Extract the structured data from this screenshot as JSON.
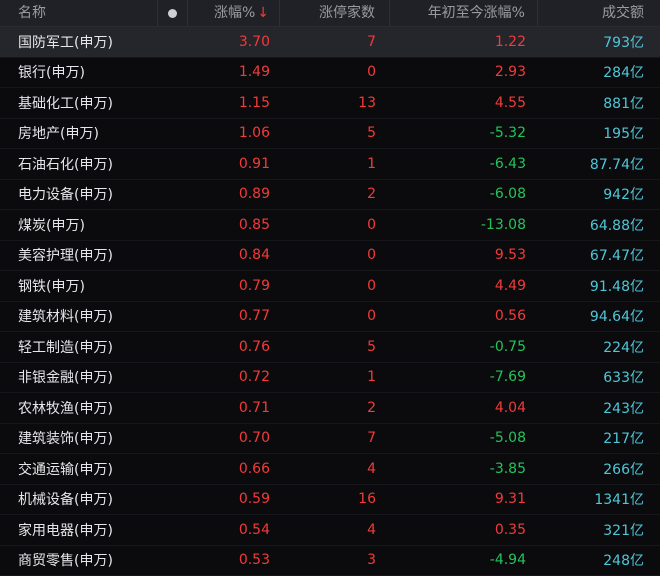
{
  "header": {
    "name": "名称",
    "change": "涨幅%",
    "sort_arrow": "↓",
    "limit_up": "涨停家数",
    "ytd": "年初至今涨幅%",
    "amount": "成交额"
  },
  "rows": [
    {
      "name": "国防军工(申万)",
      "change": "3.70",
      "limit_up": "7",
      "ytd": "1.22",
      "ytd_dir": "up",
      "amount": "793亿"
    },
    {
      "name": "银行(申万)",
      "change": "1.49",
      "limit_up": "0",
      "ytd": "2.93",
      "ytd_dir": "up",
      "amount": "284亿"
    },
    {
      "name": "基础化工(申万)",
      "change": "1.15",
      "limit_up": "13",
      "ytd": "4.55",
      "ytd_dir": "up",
      "amount": "881亿"
    },
    {
      "name": "房地产(申万)",
      "change": "1.06",
      "limit_up": "5",
      "ytd": "-5.32",
      "ytd_dir": "down",
      "amount": "195亿"
    },
    {
      "name": "石油石化(申万)",
      "change": "0.91",
      "limit_up": "1",
      "ytd": "-6.43",
      "ytd_dir": "down",
      "amount": "87.74亿"
    },
    {
      "name": "电力设备(申万)",
      "change": "0.89",
      "limit_up": "2",
      "ytd": "-6.08",
      "ytd_dir": "down",
      "amount": "942亿"
    },
    {
      "name": "煤炭(申万)",
      "change": "0.85",
      "limit_up": "0",
      "ytd": "-13.08",
      "ytd_dir": "down",
      "amount": "64.88亿"
    },
    {
      "name": "美容护理(申万)",
      "change": "0.84",
      "limit_up": "0",
      "ytd": "9.53",
      "ytd_dir": "up",
      "amount": "67.47亿"
    },
    {
      "name": "钢铁(申万)",
      "change": "0.79",
      "limit_up": "0",
      "ytd": "4.49",
      "ytd_dir": "up",
      "amount": "91.48亿"
    },
    {
      "name": "建筑材料(申万)",
      "change": "0.77",
      "limit_up": "0",
      "ytd": "0.56",
      "ytd_dir": "up",
      "amount": "94.64亿"
    },
    {
      "name": "轻工制造(申万)",
      "change": "0.76",
      "limit_up": "5",
      "ytd": "-0.75",
      "ytd_dir": "down",
      "amount": "224亿"
    },
    {
      "name": "非银金融(申万)",
      "change": "0.72",
      "limit_up": "1",
      "ytd": "-7.69",
      "ytd_dir": "down",
      "amount": "633亿"
    },
    {
      "name": "农林牧渔(申万)",
      "change": "0.71",
      "limit_up": "2",
      "ytd": "4.04",
      "ytd_dir": "up",
      "amount": "243亿"
    },
    {
      "name": "建筑装饰(申万)",
      "change": "0.70",
      "limit_up": "7",
      "ytd": "-5.08",
      "ytd_dir": "down",
      "amount": "217亿"
    },
    {
      "name": "交通运输(申万)",
      "change": "0.66",
      "limit_up": "4",
      "ytd": "-3.85",
      "ytd_dir": "down",
      "amount": "266亿"
    },
    {
      "name": "机械设备(申万)",
      "change": "0.59",
      "limit_up": "16",
      "ytd": "9.31",
      "ytd_dir": "up",
      "amount": "1341亿"
    },
    {
      "name": "家用电器(申万)",
      "change": "0.54",
      "limit_up": "4",
      "ytd": "0.35",
      "ytd_dir": "up",
      "amount": "321亿"
    },
    {
      "name": "商贸零售(申万)",
      "change": "0.53",
      "limit_up": "3",
      "ytd": "-4.94",
      "ytd_dir": "down",
      "amount": "248亿"
    }
  ],
  "colors": {
    "up": "#f23a3a",
    "down": "#23c35b",
    "amount": "#4fc6d8"
  }
}
